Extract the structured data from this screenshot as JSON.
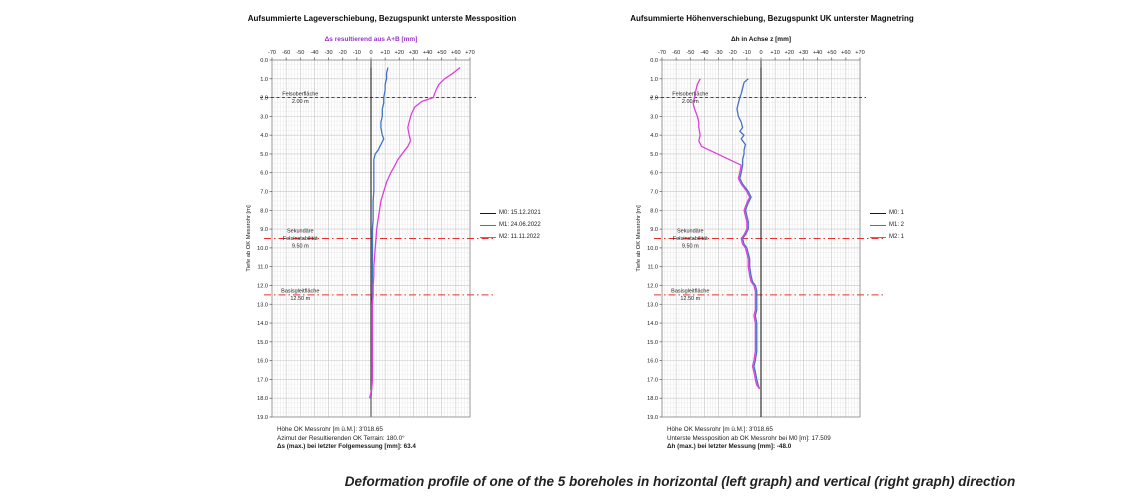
{
  "page": {
    "caption": "Deformation profile of one of the 5 boreholes in horizontal (left graph) and vertical (right graph) direction"
  },
  "chart_data": [
    {
      "type": "line",
      "title": "Aufsummierte Lageverschiebung, Bezugspunkt unterste Messposition",
      "xlabel": "Δs resultierend aus A+B [mm]",
      "xlabel_color": "#9933cc",
      "ylabel": "Tiefe ab OK Messrohr [m]",
      "xlim": [
        -70,
        70
      ],
      "ylim": [
        0,
        19
      ],
      "x_tick_labels": [
        "-70",
        "-60",
        "-50",
        "-40",
        "-30",
        "-20",
        "-10",
        "0",
        "+10",
        "+20",
        "+30",
        "+40",
        "+50",
        "+60",
        "+70"
      ],
      "y_tick_step": 1.0,
      "grid": "on",
      "legend_position": "right",
      "legend": [
        {
          "label": "M0: 15.12.2021",
          "color": "#1a1a1a"
        },
        {
          "label": "M1: 24.06.2022",
          "color": "#4472c4"
        },
        {
          "label": "M2: 11.11.2022",
          "color": "#e03fd8"
        }
      ],
      "annotations": [
        {
          "depth": 2.0,
          "style": "black-dashed",
          "lines": [
            "Felsoberfläche",
            "2.00 m"
          ]
        },
        {
          "depth": 9.5,
          "style": "red-dashdot",
          "lines": [
            "Sekundäre",
            "Felsinstabilität",
            "9.50 m"
          ]
        },
        {
          "depth": 12.5,
          "style": "red-dashdot",
          "lines": [
            "Basisgleitfläche",
            "12.50 m"
          ]
        }
      ],
      "series": [
        {
          "name": "M0",
          "color": "#1a1a1a",
          "width": 1.0,
          "points": [
            [
              0.4,
              0
            ],
            [
              18.0,
              0
            ]
          ]
        },
        {
          "name": "M1",
          "color": "#4472c4",
          "width": 1.3,
          "points": [
            [
              0.4,
              12
            ],
            [
              0.7,
              11
            ],
            [
              1.0,
              11
            ],
            [
              1.3,
              10
            ],
            [
              1.6,
              10
            ],
            [
              2.0,
              9
            ],
            [
              2.3,
              9
            ],
            [
              2.6,
              8
            ],
            [
              3.0,
              8
            ],
            [
              3.3,
              7
            ],
            [
              3.6,
              7
            ],
            [
              4.0,
              8
            ],
            [
              4.2,
              9
            ],
            [
              4.5,
              7
            ],
            [
              4.8,
              5
            ],
            [
              5.0,
              3
            ],
            [
              5.3,
              2
            ],
            [
              5.6,
              2
            ],
            [
              6.0,
              2
            ],
            [
              6.5,
              2
            ],
            [
              7.0,
              2
            ],
            [
              7.5,
              1.5
            ],
            [
              8.0,
              1.5
            ],
            [
              8.5,
              1.5
            ],
            [
              9.0,
              1
            ],
            [
              9.5,
              1
            ],
            [
              10.0,
              1
            ],
            [
              10.5,
              1
            ],
            [
              11.0,
              1
            ],
            [
              11.5,
              1
            ],
            [
              12.0,
              1
            ],
            [
              12.5,
              1
            ],
            [
              13.0,
              0.5
            ],
            [
              13.5,
              0.5
            ],
            [
              14.0,
              0.5
            ],
            [
              14.5,
              0.5
            ],
            [
              15.0,
              0.5
            ],
            [
              15.5,
              0.5
            ],
            [
              16.0,
              0.5
            ],
            [
              16.5,
              0.5
            ],
            [
              17.0,
              0.5
            ],
            [
              17.5,
              0.5
            ],
            [
              18.0,
              0
            ]
          ]
        },
        {
          "name": "M2",
          "color": "#e03fd8",
          "width": 1.3,
          "points": [
            [
              0.4,
              63
            ],
            [
              0.7,
              58
            ],
            [
              1.0,
              52
            ],
            [
              1.3,
              48
            ],
            [
              1.6,
              46
            ],
            [
              2.0,
              44
            ],
            [
              2.2,
              36
            ],
            [
              2.5,
              31
            ],
            [
              2.8,
              29
            ],
            [
              3.0,
              28
            ],
            [
              3.3,
              27
            ],
            [
              3.6,
              26
            ],
            [
              4.0,
              27
            ],
            [
              4.3,
              28
            ],
            [
              4.6,
              26
            ],
            [
              5.0,
              22
            ],
            [
              5.3,
              19
            ],
            [
              5.6,
              17
            ],
            [
              6.0,
              14
            ],
            [
              6.5,
              11
            ],
            [
              7.0,
              9
            ],
            [
              7.5,
              7
            ],
            [
              8.0,
              6
            ],
            [
              8.5,
              5
            ],
            [
              9.0,
              4
            ],
            [
              9.5,
              3.5
            ],
            [
              10.0,
              3
            ],
            [
              10.5,
              2.5
            ],
            [
              11.0,
              2
            ],
            [
              11.5,
              2
            ],
            [
              12.0,
              1.5
            ],
            [
              12.5,
              1.5
            ],
            [
              13.0,
              1
            ],
            [
              13.5,
              1
            ],
            [
              14.0,
              1
            ],
            [
              14.5,
              1
            ],
            [
              15.0,
              1
            ],
            [
              15.5,
              1
            ],
            [
              16.0,
              1
            ],
            [
              16.5,
              1
            ],
            [
              17.0,
              1
            ],
            [
              17.5,
              0.5
            ],
            [
              18.0,
              -1
            ]
          ]
        }
      ],
      "footer": [
        "Höhe OK Messrohr [m ü.M.]: 3'018.65",
        "Azimut der Resultierenden OK Terrain: 180.0°",
        "Δs (max.) bei letzter Folgemessung [mm]: 63.4"
      ]
    },
    {
      "type": "line",
      "title": "Aufsummierte Höhenverschiebung, Bezugspunkt UK unterster Magnetring",
      "xlabel": "Δh in Achse z [mm]",
      "xlabel_color": "#111111",
      "ylabel": "Tiefe ab OK Messrohr [m]",
      "xlim": [
        -70,
        70
      ],
      "ylim": [
        0,
        19
      ],
      "x_tick_labels": [
        "-70",
        "-60",
        "-50",
        "-40",
        "-30",
        "-20",
        "-10",
        "0",
        "+10",
        "+20",
        "+30",
        "+40",
        "+50",
        "+60",
        "+70"
      ],
      "y_tick_step": 1.0,
      "grid": "on",
      "legend_position": "right",
      "legend": [
        {
          "label": "M0: 1",
          "color": "#1a1a1a"
        },
        {
          "label": "M1: 2",
          "color": "#4472c4"
        },
        {
          "label": "M2: 1",
          "color": "#e03fd8"
        }
      ],
      "annotations": [
        {
          "depth": 2.0,
          "style": "black-dashed",
          "lines": [
            "Felsoberfläche",
            "2.00 m"
          ]
        },
        {
          "depth": 9.5,
          "style": "red-dashdot",
          "lines": [
            "Sekundäre",
            "Felsinstabilität",
            "9.50 m"
          ]
        },
        {
          "depth": 12.5,
          "style": "red-dashdot",
          "lines": [
            "Basisgleitfläche",
            "12.50 m"
          ]
        }
      ],
      "series": [
        {
          "name": "M0",
          "color": "#1a1a1a",
          "width": 1.0,
          "points": [
            [
              0.4,
              0
            ],
            [
              19.0,
              0
            ]
          ]
        },
        {
          "name": "M1",
          "color": "#4472c4",
          "width": 1.3,
          "points": [
            [
              1.0,
              -9
            ],
            [
              1.2,
              -12
            ],
            [
              1.5,
              -13
            ],
            [
              1.8,
              -14
            ],
            [
              2.0,
              -15
            ],
            [
              2.3,
              -16
            ],
            [
              2.6,
              -17
            ],
            [
              3.0,
              -16
            ],
            [
              3.3,
              -14
            ],
            [
              3.6,
              -13
            ],
            [
              3.8,
              -15
            ],
            [
              4.0,
              -12
            ],
            [
              4.2,
              -14
            ],
            [
              4.5,
              -11
            ],
            [
              4.8,
              -12
            ],
            [
              5.0,
              -12
            ],
            [
              5.3,
              -13
            ],
            [
              5.6,
              -13
            ],
            [
              6.0,
              -14
            ],
            [
              6.3,
              -15
            ],
            [
              6.6,
              -13
            ],
            [
              7.0,
              -9
            ],
            [
              7.3,
              -7
            ],
            [
              7.6,
              -9
            ],
            [
              8.0,
              -11
            ],
            [
              8.3,
              -10
            ],
            [
              8.6,
              -9
            ],
            [
              9.0,
              -9
            ],
            [
              9.3,
              -11
            ],
            [
              9.5,
              -13
            ],
            [
              9.8,
              -12
            ],
            [
              10.0,
              -10
            ],
            [
              10.3,
              -9
            ],
            [
              10.6,
              -8
            ],
            [
              11.0,
              -8
            ],
            [
              11.5,
              -7
            ],
            [
              11.8,
              -6
            ],
            [
              12.0,
              -4
            ],
            [
              12.3,
              -3
            ],
            [
              12.6,
              -3
            ],
            [
              13.0,
              -3
            ],
            [
              13.3,
              -3
            ],
            [
              13.6,
              -4
            ],
            [
              14.0,
              -3
            ],
            [
              14.5,
              -3
            ],
            [
              15.0,
              -3
            ],
            [
              15.5,
              -3
            ],
            [
              16.0,
              -4
            ],
            [
              16.3,
              -5
            ],
            [
              16.6,
              -4
            ],
            [
              17.0,
              -3
            ],
            [
              17.3,
              -2
            ],
            [
              17.5,
              -1
            ]
          ]
        },
        {
          "name": "M2",
          "color": "#e03fd8",
          "width": 1.3,
          "points": [
            [
              1.0,
              -43
            ],
            [
              1.3,
              -45
            ],
            [
              1.6,
              -46
            ],
            [
              2.0,
              -47
            ],
            [
              2.3,
              -48
            ],
            [
              2.6,
              -47
            ],
            [
              3.0,
              -45
            ],
            [
              3.3,
              -44
            ],
            [
              3.6,
              -44
            ],
            [
              4.0,
              -43
            ],
            [
              4.3,
              -44
            ],
            [
              4.6,
              -42
            ],
            [
              5.6,
              -14
            ],
            [
              6.0,
              -15
            ],
            [
              6.3,
              -16
            ],
            [
              6.6,
              -14
            ],
            [
              7.0,
              -10
            ],
            [
              7.3,
              -8
            ],
            [
              7.6,
              -10
            ],
            [
              8.0,
              -12
            ],
            [
              8.3,
              -11
            ],
            [
              8.6,
              -10
            ],
            [
              9.0,
              -10
            ],
            [
              9.3,
              -12
            ],
            [
              9.5,
              -14
            ],
            [
              9.8,
              -13
            ],
            [
              10.0,
              -11
            ],
            [
              10.3,
              -10
            ],
            [
              10.6,
              -9
            ],
            [
              11.0,
              -9
            ],
            [
              11.5,
              -8
            ],
            [
              11.8,
              -7
            ],
            [
              12.0,
              -5
            ],
            [
              12.3,
              -4
            ],
            [
              12.6,
              -4
            ],
            [
              13.0,
              -4
            ],
            [
              13.3,
              -4
            ],
            [
              13.6,
              -5
            ],
            [
              14.0,
              -4
            ],
            [
              14.5,
              -4
            ],
            [
              15.0,
              -4
            ],
            [
              15.5,
              -4
            ],
            [
              16.0,
              -5
            ],
            [
              16.3,
              -6
            ],
            [
              16.6,
              -5
            ],
            [
              17.0,
              -4
            ],
            [
              17.3,
              -3
            ],
            [
              17.5,
              -1
            ]
          ]
        }
      ],
      "footer": [
        "Höhe OK Messrohr [m ü.M.]: 3'018.65",
        "Unterste Messposition ab OK Messrohr bei M0 [m]: 17.509",
        "Δh (max.) bei letzter Messung [mm]: -48.0"
      ]
    }
  ],
  "colors": {
    "series_m0": "#1a1a1a",
    "series_m1": "#4472c4",
    "series_m2": "#e03fd8",
    "annotation_red": "#e8312f",
    "grid_major": "#c2c2c2",
    "grid_minor": "#e6e6e6"
  }
}
